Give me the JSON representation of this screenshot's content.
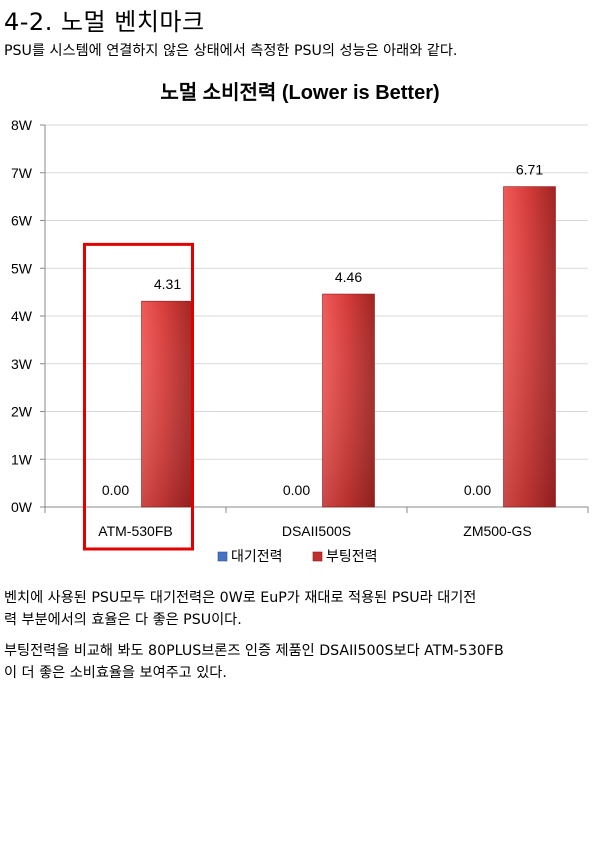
{
  "heading": "4-2. 노멀 벤치마크",
  "intro": "PSU를 시스템에 연결하지 않은 상태에서 측정한 PSU의 성능은 아래와 같다.",
  "chart_data": {
    "type": "bar",
    "title": "노멀 소비전력 (Lower is Better)",
    "categories": [
      "ATM-530FB",
      "DSAII500S",
      "ZM500-GS"
    ],
    "series": [
      {
        "name": "대기전력",
        "values": [
          0.0,
          0.0,
          0.0
        ],
        "value_labels": [
          "0.00",
          "0.00",
          "0.00"
        ],
        "color": "#4472c4"
      },
      {
        "name": "부팅전력",
        "values": [
          4.31,
          4.46,
          6.71
        ],
        "value_labels": [
          "4.31",
          "4.46",
          "6.71"
        ],
        "color": "#c0302e"
      }
    ],
    "y_ticks": [
      "0W",
      "1W",
      "2W",
      "3W",
      "4W",
      "5W",
      "6W",
      "7W",
      "8W"
    ],
    "ylim": [
      0,
      8
    ],
    "grid": true,
    "legend_position": "bottom",
    "highlight_category": "ATM-530FB",
    "highlight_color": "#e00000"
  },
  "paragraph1": [
    "벤치에 사용된 PSU모두 대기전력은 0W로 EuP가 재대로 적용된 PSU라 대기전",
    "력 부분에서의 효율은 다 좋은 PSU이다."
  ],
  "paragraph2": [
    "부팅전력을 비교해 봐도 80PLUS브론즈 인증 제품인 DSAII500S보다 ATM-530FB",
    "이 더 좋은 소비효율을 보여주고 있다."
  ]
}
